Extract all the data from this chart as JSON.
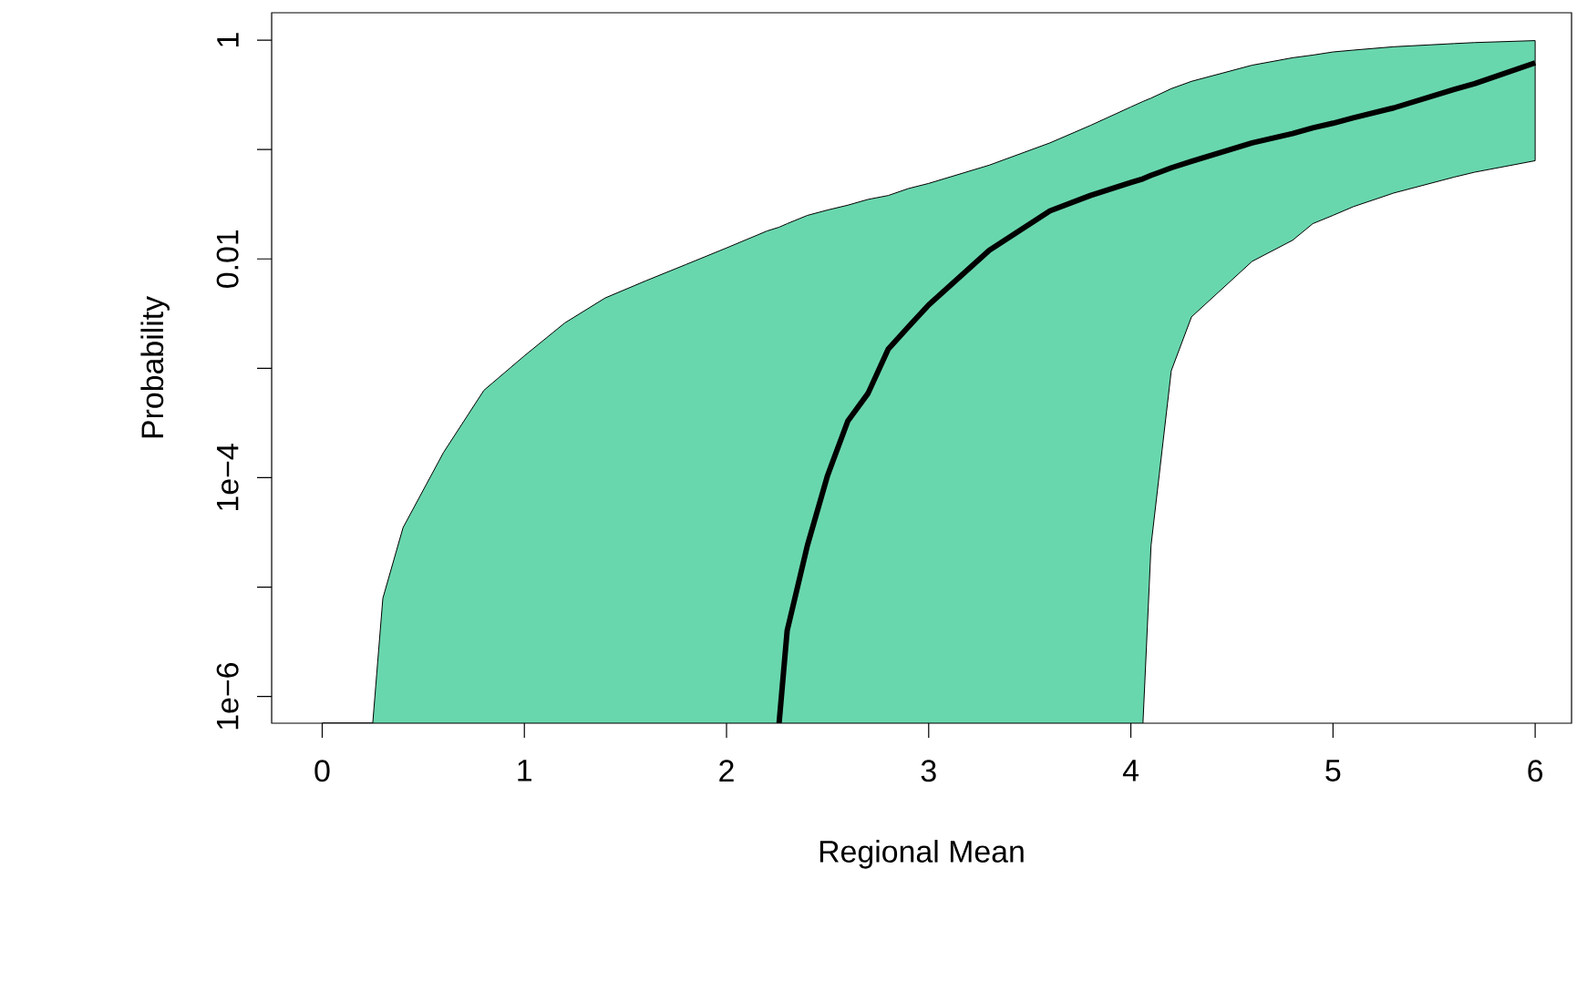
{
  "chart_data": {
    "type": "line",
    "xlabel": "Regional Mean",
    "ylabel": "Probability",
    "log": "y",
    "x": [
      0,
      0.25,
      0.3,
      0.4,
      0.6,
      0.8,
      1.0,
      1.2,
      1.4,
      1.6,
      1.8,
      2.0,
      2.2,
      2.26,
      2.3,
      2.4,
      2.5,
      2.6,
      2.7,
      2.8,
      2.9,
      3.0,
      3.3,
      3.6,
      3.8,
      4.0,
      4.06,
      4.1,
      4.2,
      4.3,
      4.6,
      4.8,
      4.9,
      5.0,
      5.1,
      5.3,
      5.6,
      5.7,
      6.0
    ],
    "xlim": [
      -0.25,
      6.18
    ],
    "ylim": [
      5.7e-07,
      1.78
    ],
    "xticks": [
      0,
      1,
      2,
      3,
      4,
      5,
      6
    ],
    "yticks": [
      {
        "value": 1e-06,
        "label": "1e−6"
      },
      {
        "value": 1e-05,
        "label": null
      },
      {
        "value": 0.0001,
        "label": "1e−4"
      },
      {
        "value": 0.001,
        "label": null
      },
      {
        "value": 0.01,
        "label": "0.01"
      },
      {
        "value": 0.1,
        "label": null
      },
      {
        "value": 1,
        "label": "1"
      }
    ],
    "series": [
      {
        "color": "#000000",
        "values": [
          null,
          null,
          null,
          null,
          null,
          null,
          null,
          null,
          null,
          null,
          null,
          null,
          null,
          5.7e-07,
          4e-06,
          2.4e-05,
          0.000105,
          0.00033,
          0.00059,
          0.0015,
          0.0024,
          0.0038,
          0.012,
          0.0275,
          0.038,
          0.05,
          0.054,
          0.058,
          0.068,
          0.078,
          0.115,
          0.14,
          0.158,
          0.174,
          0.195,
          0.24,
          0.355,
          0.4,
          0.62
        ],
        "upper": [
          5.7e-07,
          5.7e-07,
          7.9e-06,
          3.5e-05,
          0.00017,
          0.00063,
          0.0013,
          0.0026,
          0.0044,
          0.0063,
          0.0089,
          0.0126,
          0.018,
          0.0195,
          0.021,
          0.025,
          0.028,
          0.031,
          0.035,
          0.038,
          0.044,
          0.049,
          0.072,
          0.115,
          0.166,
          0.245,
          0.275,
          0.295,
          0.36,
          0.42,
          0.59,
          0.69,
          0.73,
          0.78,
          0.81,
          0.87,
          0.93,
          0.95,
          0.99
        ],
        "lower": [
          5.7e-07,
          5.7e-07,
          5.7e-07,
          5.7e-07,
          5.7e-07,
          5.7e-07,
          5.7e-07,
          5.7e-07,
          5.7e-07,
          5.7e-07,
          5.7e-07,
          5.7e-07,
          5.7e-07,
          5.7e-07,
          5.7e-07,
          5.7e-07,
          5.7e-07,
          5.7e-07,
          5.7e-07,
          5.7e-07,
          5.7e-07,
          5.7e-07,
          5.7e-07,
          5.7e-07,
          5.7e-07,
          5.7e-07,
          5.7e-07,
          2.4e-05,
          0.00095,
          0.00295,
          0.0095,
          0.0148,
          0.021,
          0.025,
          0.03,
          0.04,
          0.056,
          0.062,
          0.079
        ]
      }
    ]
  }
}
